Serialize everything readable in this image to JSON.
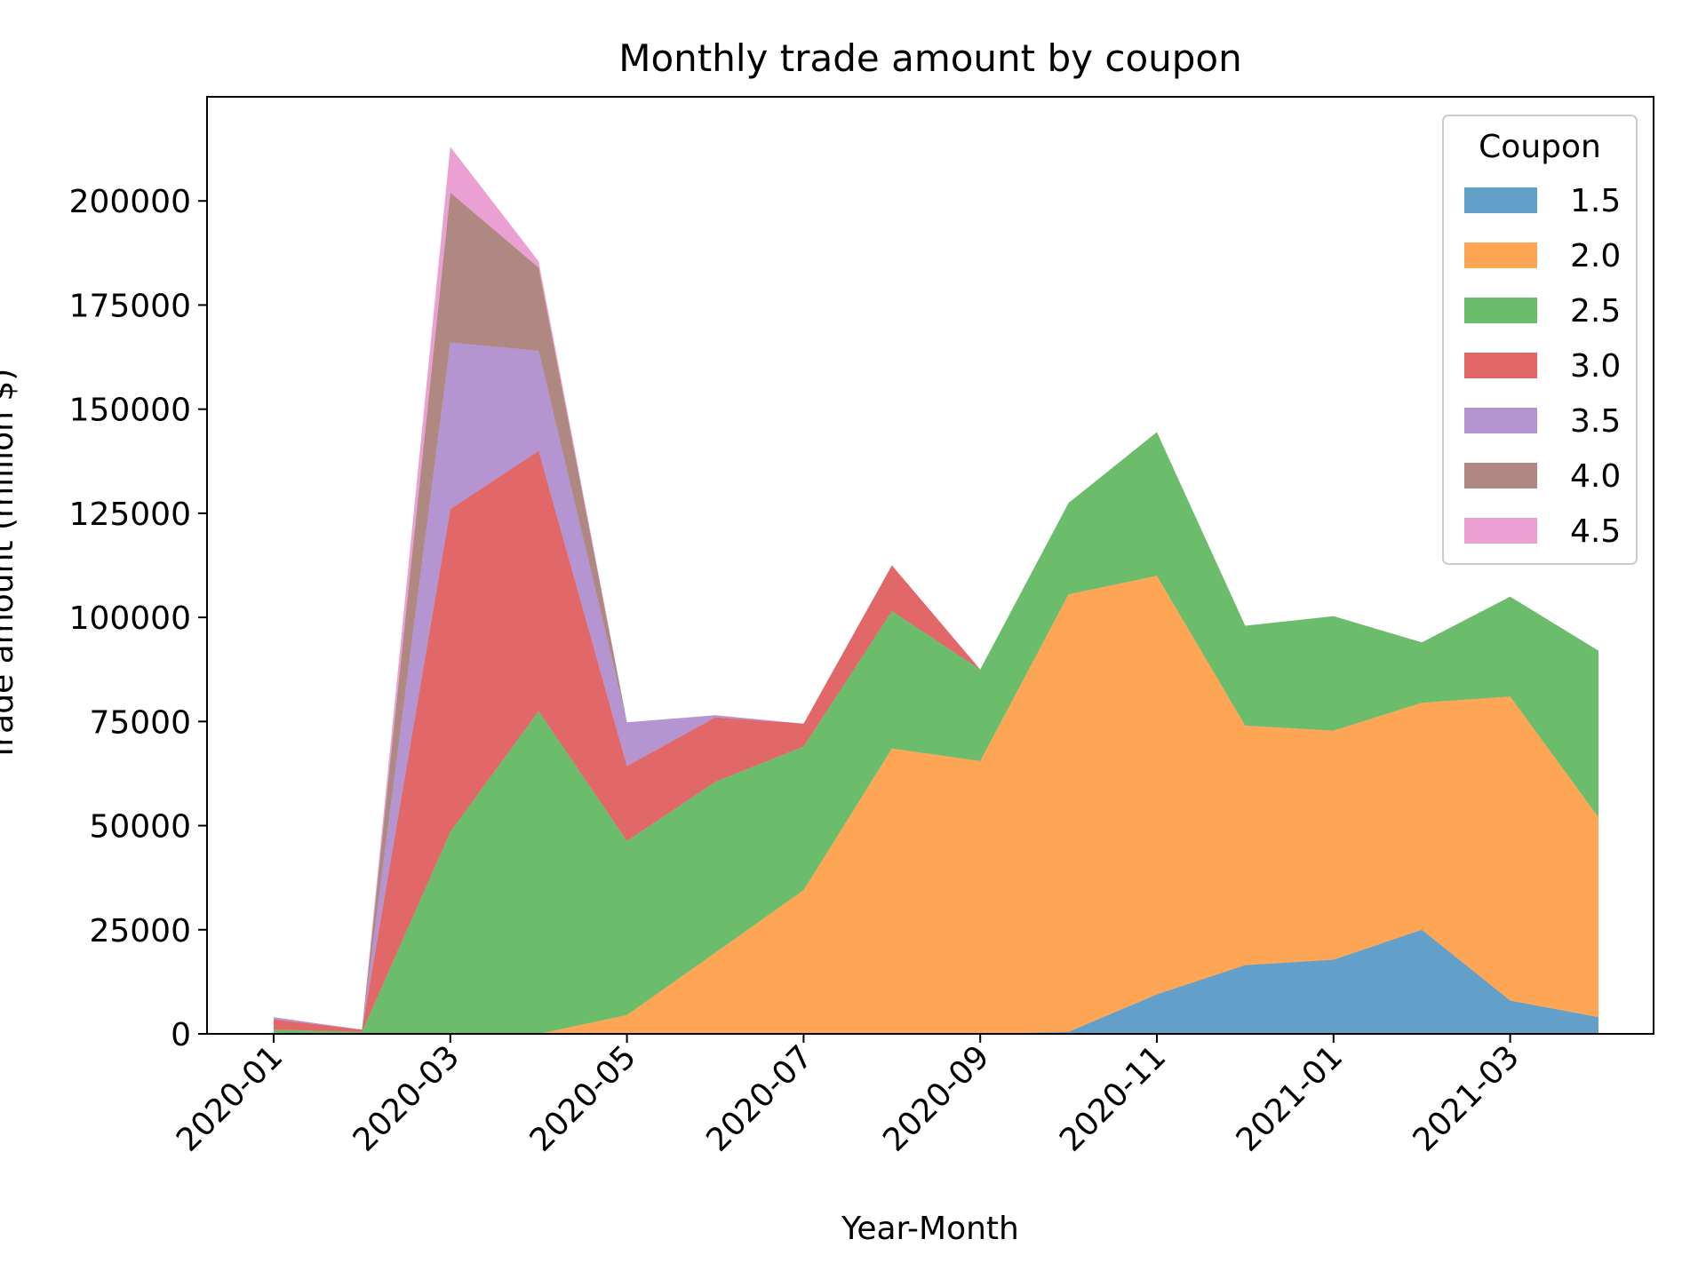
{
  "chart_data": {
    "type": "area",
    "stacked": true,
    "title": "Monthly trade amount by coupon",
    "xlabel": "Year-Month",
    "ylabel": "Trade amount (million $)",
    "ylim": [
      0,
      225000
    ],
    "yticks": [
      0,
      25000,
      50000,
      75000,
      100000,
      125000,
      150000,
      175000,
      200000
    ],
    "ytick_labels": [
      "0",
      "25000",
      "50000",
      "75000",
      "100000",
      "125000",
      "150000",
      "175000",
      "200000"
    ],
    "x": [
      "2020-01",
      "2020-02",
      "2020-03",
      "2020-04",
      "2020-05",
      "2020-06",
      "2020-07",
      "2020-08",
      "2020-09",
      "2020-10",
      "2020-11",
      "2020-12",
      "2021-01",
      "2021-02",
      "2021-03",
      "2021-04"
    ],
    "xtick_labels": [
      "2020-01",
      "2020-03",
      "2020-05",
      "2020-07",
      "2020-09",
      "2020-11",
      "2021-01",
      "2021-03"
    ],
    "grid": false,
    "legend": {
      "title": "Coupon",
      "position": "top-right"
    },
    "series": [
      {
        "name": "1.5",
        "color": "#1f77b4",
        "values": [
          0,
          0,
          0,
          0,
          0,
          0,
          0,
          0,
          0,
          500,
          9500,
          16500,
          17800,
          25000,
          8000,
          4000
        ]
      },
      {
        "name": "2.0",
        "color": "#ff7f0e",
        "values": [
          0,
          0,
          0,
          0,
          4500,
          19500,
          34500,
          68500,
          65500,
          105000,
          100500,
          57500,
          55000,
          54500,
          73000,
          48000
        ]
      },
      {
        "name": "2.5",
        "color": "#2ca02c",
        "values": [
          1000,
          500,
          48500,
          77500,
          41800,
          41000,
          34500,
          33000,
          22000,
          22000,
          34500,
          24000,
          27500,
          14500,
          24000,
          40000
        ]
      },
      {
        "name": "3.0",
        "color": "#d62728",
        "values": [
          2500,
          500,
          77500,
          62500,
          18000,
          15500,
          5500,
          11000,
          0,
          0,
          0,
          0,
          0,
          0,
          0,
          0
        ]
      },
      {
        "name": "3.5",
        "color": "#9467bd",
        "values": [
          500,
          0,
          40000,
          24000,
          10500,
          500,
          0,
          0,
          0,
          0,
          0,
          0,
          0,
          0,
          0,
          0
        ]
      },
      {
        "name": "4.0",
        "color": "#8c564b",
        "values": [
          0,
          0,
          36000,
          20000,
          0,
          0,
          0,
          0,
          0,
          0,
          0,
          0,
          0,
          0,
          0,
          0
        ]
      },
      {
        "name": "4.5",
        "color": "#e377c2",
        "values": [
          0,
          0,
          11000,
          1500,
          0,
          0,
          0,
          0,
          0,
          0,
          0,
          0,
          0,
          0,
          0,
          0
        ]
      }
    ]
  }
}
